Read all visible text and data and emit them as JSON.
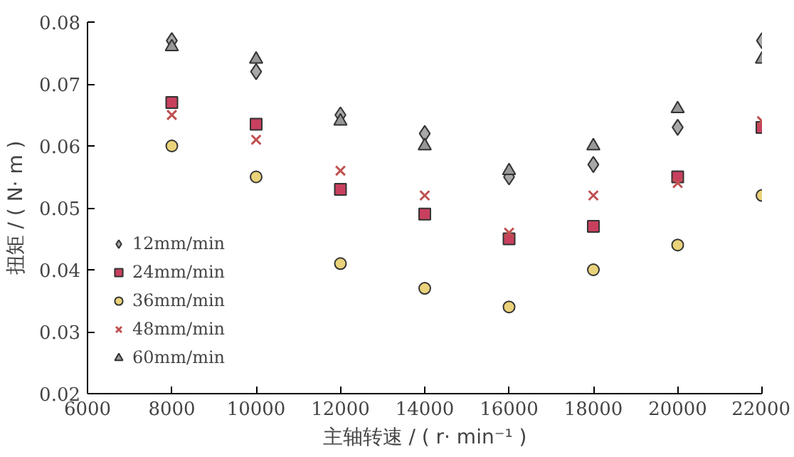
{
  "chart_data": {
    "type": "scatter",
    "xlabel": "主轴转速 / ( r· min⁻¹ )",
    "ylabel": "扭矩 / ( N· m )",
    "x": [
      8000,
      10000,
      12000,
      14000,
      16000,
      18000,
      20000,
      22000
    ],
    "series": [
      {
        "name": "12mm/min",
        "color": "#a8a8a8",
        "marker": "diamond",
        "values": [
          0.077,
          0.072,
          0.065,
          0.062,
          0.055,
          0.057,
          0.063,
          0.077
        ]
      },
      {
        "name": "24mm/min",
        "color": "#c8405e",
        "marker": "square",
        "values": [
          0.067,
          0.0635,
          0.053,
          0.049,
          0.045,
          0.047,
          0.055,
          0.063
        ]
      },
      {
        "name": "36mm/min",
        "color": "#ead27a",
        "marker": "circle",
        "values": [
          0.06,
          0.055,
          0.041,
          0.037,
          0.034,
          0.04,
          0.044,
          0.052
        ]
      },
      {
        "name": "48mm/min",
        "color": "#c05050",
        "marker": "cross",
        "values": [
          0.065,
          0.061,
          0.056,
          0.052,
          0.046,
          0.052,
          0.054,
          0.064
        ]
      },
      {
        "name": "60mm/min",
        "color": "#989898",
        "marker": "triangle",
        "values": [
          0.076,
          0.074,
          0.064,
          0.06,
          0.056,
          0.06,
          0.066,
          0.074
        ]
      }
    ],
    "xlim": [
      6000,
      22000
    ],
    "xticks": [
      6000,
      8000,
      10000,
      12000,
      14000,
      16000,
      18000,
      20000,
      22000
    ],
    "ylim": [
      0.02,
      0.08
    ],
    "yticks": [
      {
        "value": 0.02,
        "label": "0.02"
      },
      {
        "value": 0.03,
        "label": "0.03"
      },
      {
        "value": 0.04,
        "label": "0.04"
      },
      {
        "value": 0.05,
        "label": "0.05"
      },
      {
        "value": 0.06,
        "label": "0.06"
      },
      {
        "value": 0.07,
        "label": "0.07"
      },
      {
        "value": 0.08,
        "label": "0.08"
      }
    ],
    "grid": false,
    "legend": "bottom left"
  }
}
